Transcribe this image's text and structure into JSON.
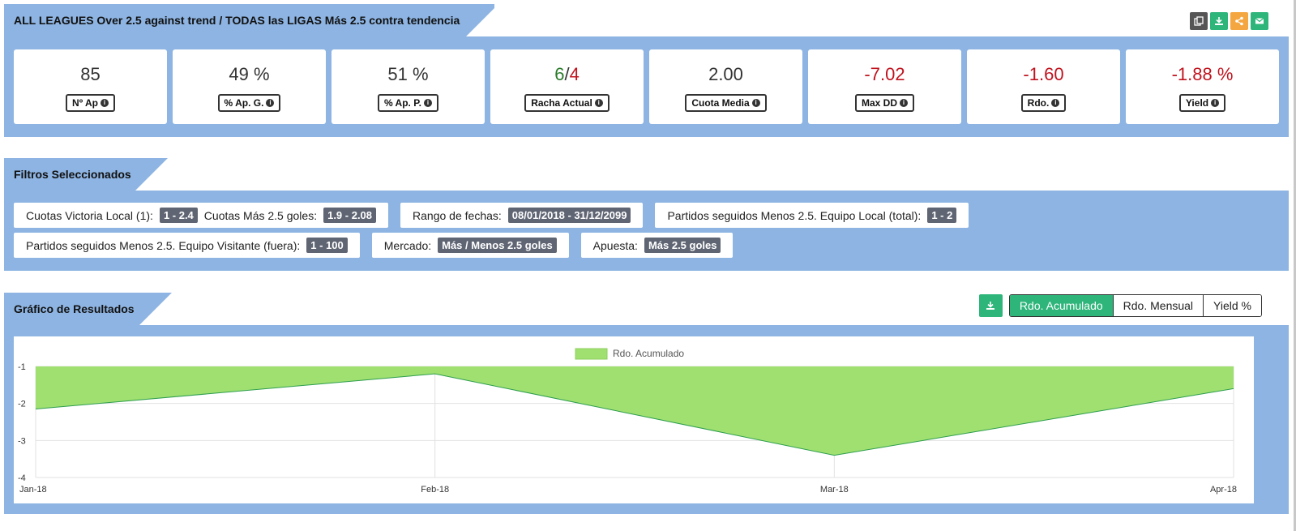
{
  "header": {
    "title": "ALL LEAGUES Over 2.5 against trend / TODAS las LIGAS Más 2.5 contra tendencia",
    "icons": [
      {
        "name": "copy-icon",
        "color": "#555555"
      },
      {
        "name": "download-icon",
        "color": "#2db57a"
      },
      {
        "name": "share-icon",
        "color": "#f4a640"
      },
      {
        "name": "email-icon",
        "color": "#2db57a"
      }
    ]
  },
  "kpis": [
    {
      "value": "85",
      "label": "Nº Ap",
      "tone": "normal"
    },
    {
      "value": "49 %",
      "label": "% Ap. G.",
      "tone": "normal"
    },
    {
      "value": "51 %",
      "label": "% Ap. P.",
      "tone": "normal"
    },
    {
      "value_win": "6",
      "value_sep": "/",
      "value_loss": "4",
      "label": "Racha Actual",
      "tone": "streak"
    },
    {
      "value": "2.00",
      "label": "Cuota Media",
      "tone": "normal"
    },
    {
      "value": "-7.02",
      "label": "Max DD",
      "tone": "neg"
    },
    {
      "value": "-1.60",
      "label": "Rdo.",
      "tone": "neg"
    },
    {
      "value": "-1.88 %",
      "label": "Yield",
      "tone": "neg"
    }
  ],
  "filters": {
    "title": "Filtros Seleccionados",
    "row1": [
      {
        "label": "Cuotas Victoria Local (1):",
        "badge": "1 - 2.4",
        "label2": "Cuotas Más 2.5 goles:",
        "badge2": "1.9 - 2.08"
      },
      {
        "label": "Rango de fechas:",
        "badge": "08/01/2018 - 31/12/2099"
      },
      {
        "label": "Partidos seguidos Menos 2.5. Equipo Local (total):",
        "badge": "1 - 2"
      }
    ],
    "row2": [
      {
        "label": "Partidos seguidos Menos 2.5. Equipo Visitante (fuera):",
        "badge": "1 - 100"
      },
      {
        "label": "Mercado:",
        "badge": "Más / Menos 2.5 goles"
      },
      {
        "label": "Apuesta:",
        "badge": "Más 2.5 goles"
      }
    ]
  },
  "results": {
    "title": "Gráfico de Resultados",
    "tabs": [
      "Rdo. Acumulado",
      "Rdo. Mensual",
      "Yield %"
    ],
    "active_tab": 0
  },
  "chart_data": {
    "type": "area",
    "x": [
      "Jan-18",
      "Feb-18",
      "Mar-18",
      "Apr-18"
    ],
    "series": [
      {
        "name": "Rdo. Acumulado",
        "values": [
          -2.15,
          -1.2,
          -3.4,
          -1.6
        ],
        "color": "#9fe070",
        "line_color": "#2e9e4e"
      }
    ],
    "ylim": [
      -4,
      -1
    ],
    "yticks": [
      "-1",
      "-2",
      "-3",
      "-4"
    ],
    "grid": true,
    "legend": "top-center"
  }
}
